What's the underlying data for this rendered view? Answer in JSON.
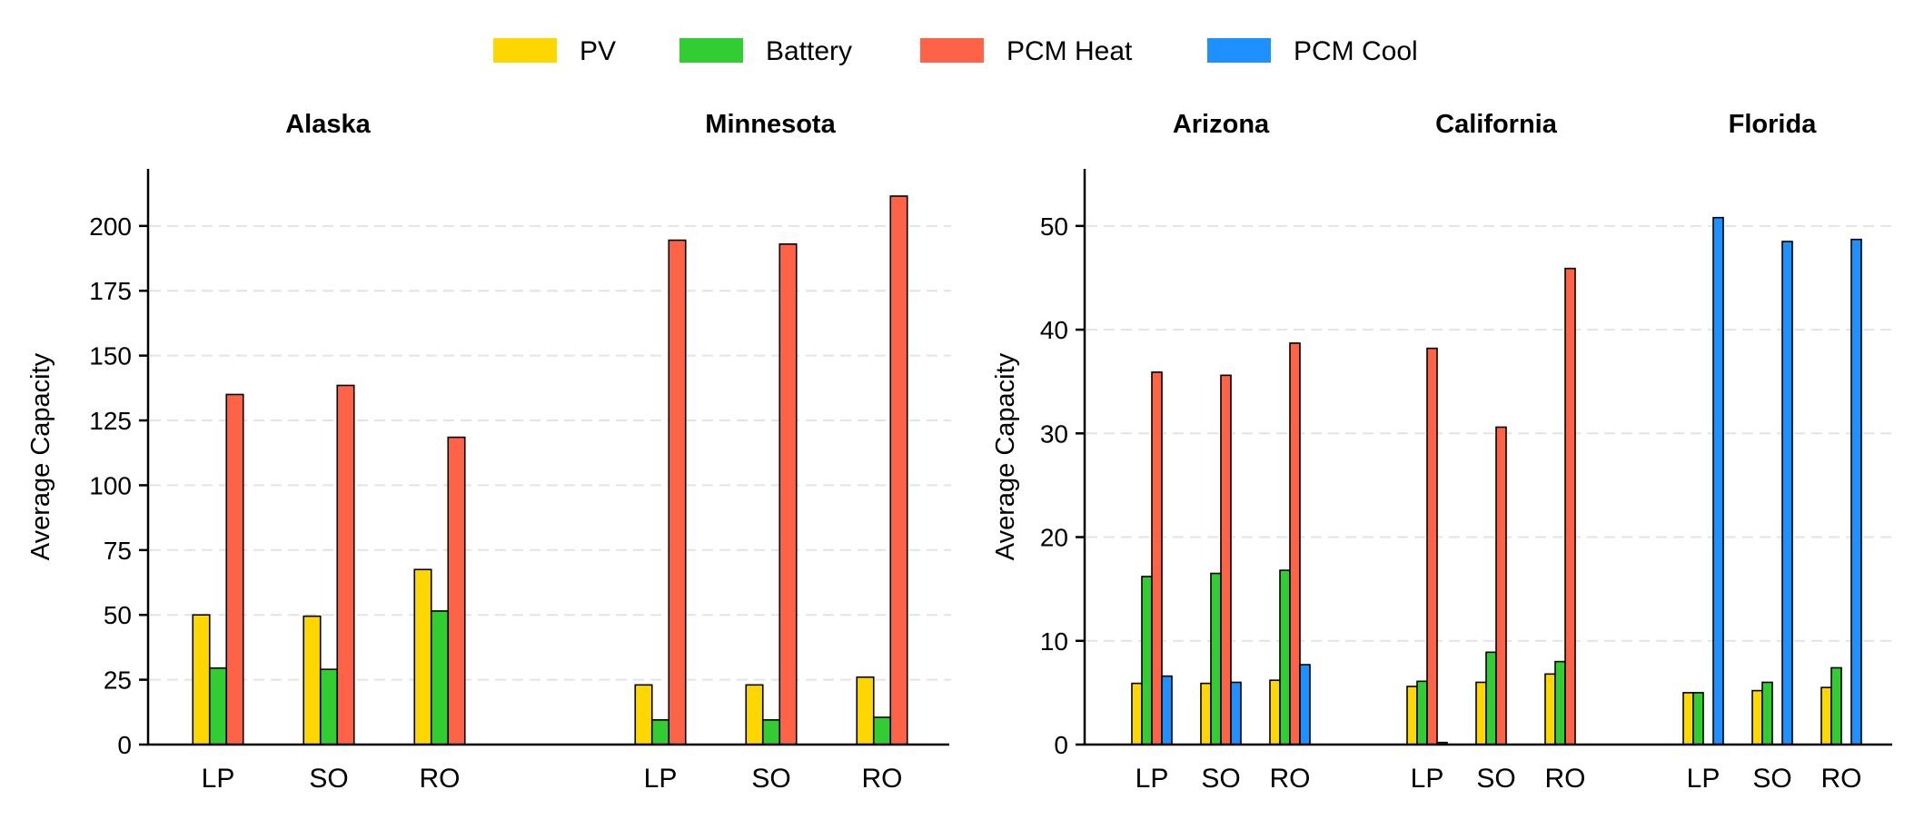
{
  "legend": [
    {
      "name": "PV",
      "color": "#FFD700"
    },
    {
      "name": "Battery",
      "color": "#32CD32"
    },
    {
      "name": "PCM Heat",
      "color": "#FF6347"
    },
    {
      "name": "PCM Cool",
      "color": "#1E90FF"
    }
  ],
  "chart_data": [
    {
      "type": "bar",
      "ylabel": "Average Capacity",
      "ylim": [
        0,
        222
      ],
      "yticks": [
        0,
        25,
        50,
        75,
        100,
        125,
        150,
        175,
        200
      ],
      "grid": "horizontal dashed",
      "legend_position": "top-center",
      "groups": [
        {
          "title": "Alaska",
          "categories": [
            "LP",
            "SO",
            "RO"
          ],
          "series": [
            {
              "name": "PV",
              "values": [
                50,
                49.5,
                67.5
              ]
            },
            {
              "name": "Battery",
              "values": [
                29.5,
                29,
                51.5
              ]
            },
            {
              "name": "PCM Heat",
              "values": [
                135,
                138.5,
                118.5
              ]
            }
          ]
        },
        {
          "title": "Minnesota",
          "categories": [
            "LP",
            "SO",
            "RO"
          ],
          "series": [
            {
              "name": "PV",
              "values": [
                23,
                23,
                26
              ]
            },
            {
              "name": "Battery",
              "values": [
                9.5,
                9.5,
                10.5
              ]
            },
            {
              "name": "PCM Heat",
              "values": [
                194.5,
                193,
                211.5
              ]
            }
          ]
        }
      ]
    },
    {
      "type": "bar",
      "ylabel": "Average Capacity",
      "ylim": [
        0,
        55.5
      ],
      "yticks": [
        0,
        10,
        20,
        30,
        40,
        50
      ],
      "grid": "horizontal dashed",
      "groups": [
        {
          "title": "Arizona",
          "categories": [
            "LP",
            "SO",
            "RO"
          ],
          "series": [
            {
              "name": "PV",
              "values": [
                5.9,
                5.9,
                6.2
              ]
            },
            {
              "name": "Battery",
              "values": [
                16.2,
                16.5,
                16.8
              ]
            },
            {
              "name": "PCM Heat",
              "values": [
                35.9,
                35.6,
                38.7
              ]
            },
            {
              "name": "PCM Cool",
              "values": [
                6.6,
                6,
                7.7
              ]
            }
          ]
        },
        {
          "title": "California",
          "categories": [
            "LP",
            "SO",
            "RO"
          ],
          "series": [
            {
              "name": "PV",
              "values": [
                5.6,
                6,
                6.8
              ]
            },
            {
              "name": "Battery",
              "values": [
                6.1,
                8.9,
                8
              ]
            },
            {
              "name": "PCM Heat",
              "values": [
                38.2,
                30.6,
                45.9
              ]
            },
            {
              "name": "PCM Cool",
              "values": [
                0.2,
                0,
                0
              ]
            }
          ]
        },
        {
          "title": "Florida",
          "categories": [
            "LP",
            "SO",
            "RO"
          ],
          "series": [
            {
              "name": "PV",
              "values": [
                5,
                5.2,
                5.5
              ]
            },
            {
              "name": "Battery",
              "values": [
                5,
                6,
                7.4
              ]
            },
            {
              "name": "PCM Heat",
              "values": [
                0,
                0,
                0
              ]
            },
            {
              "name": "PCM Cool",
              "values": [
                50.8,
                48.5,
                48.7
              ]
            }
          ]
        }
      ]
    }
  ]
}
